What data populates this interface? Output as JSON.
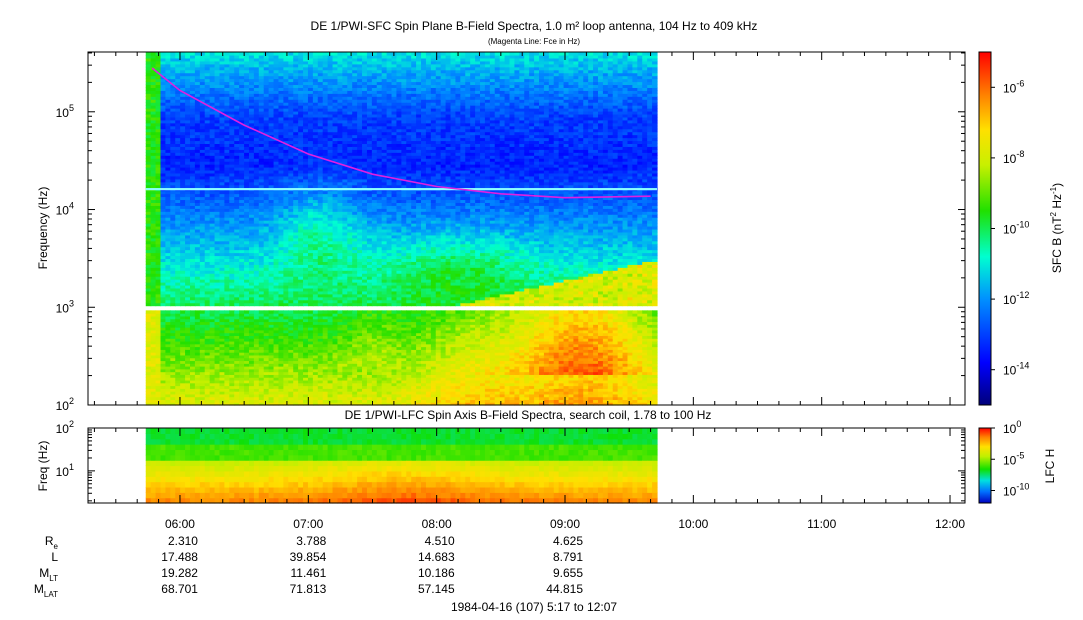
{
  "chart_data": [
    {
      "type": "heatmap",
      "title": "DE 1/PWI-SFC  Spin Plane B-Field Spectra, 1.0 m² loop antenna, 104 Hz to 409 kHz",
      "subtitle": "(Magenta Line: Fce in Hz)",
      "ylabel": "Frequency (Hz)",
      "y_scale": "log",
      "ylim": [
        100,
        409000
      ],
      "ytick_labels": [
        {
          "base": "10",
          "exp": "2"
        },
        {
          "base": "10",
          "exp": "3"
        },
        {
          "base": "10",
          "exp": "4"
        },
        {
          "base": "10",
          "exp": "5"
        }
      ],
      "colorbar": {
        "label": "SFC B (nT² Hz⁻¹)",
        "label_parts": {
          "pre": "SFC B (nT",
          "exp1": "2",
          "mid": " Hz",
          "exp2": "-1",
          "post": ")"
        },
        "scale": "log",
        "range_exp": [
          -15,
          -5
        ],
        "ticks": [
          {
            "base": "10",
            "exp": "-6"
          },
          {
            "base": "10",
            "exp": "-8"
          },
          {
            "base": "10",
            "exp": "-10"
          },
          {
            "base": "10",
            "exp": "-12"
          },
          {
            "base": "10",
            "exp": "-14"
          }
        ]
      },
      "data_coverage_ut": [
        "05:44",
        "09:43"
      ],
      "fce_line": {
        "color": "#e020e0",
        "points": [
          {
            "t": "05:47",
            "f": 280000
          },
          {
            "t": "06:00",
            "f": 165000
          },
          {
            "t": "06:30",
            "f": 73000
          },
          {
            "t": "07:00",
            "f": 37000
          },
          {
            "t": "07:30",
            "f": 23000
          },
          {
            "t": "08:00",
            "f": 17200
          },
          {
            "t": "08:30",
            "f": 14500
          },
          {
            "t": "09:00",
            "f": 13200
          },
          {
            "t": "09:40",
            "f": 13700
          }
        ]
      }
    },
    {
      "type": "heatmap",
      "title": "DE 1/PWI-LFC  Spin Axis B-Field Spectra, search coil, 1.78 to 100 Hz",
      "ylabel": "Freq (Hz)",
      "y_scale": "log",
      "ylim": [
        1.78,
        100
      ],
      "ytick_labels": [
        {
          "base": "10",
          "exp": "2"
        },
        {
          "base": "10",
          "exp": "1"
        }
      ],
      "colorbar": {
        "label": "LFC H",
        "scale": "log",
        "range_exp": [
          -12,
          0
        ],
        "ticks": [
          {
            "base": "10",
            "exp": "0"
          },
          {
            "base": "10",
            "exp": "-5"
          },
          {
            "base": "10",
            "exp": "-10"
          }
        ]
      },
      "data_coverage_ut": [
        "05:44",
        "09:43"
      ]
    }
  ],
  "x_axis": {
    "ticks": [
      "06:00",
      "07:00",
      "08:00",
      "09:00",
      "10:00",
      "11:00",
      "12:00"
    ],
    "range": [
      "05:17",
      "12:07"
    ]
  },
  "ephemeris": {
    "rows": [
      {
        "label": "R",
        "sub": "e",
        "values": [
          "2.310",
          "3.788",
          "4.510",
          "4.625"
        ]
      },
      {
        "label": "L",
        "sub": "",
        "values": [
          "17.488",
          "39.854",
          "14.683",
          "8.791"
        ]
      },
      {
        "label": "M",
        "sub": "LT",
        "values": [
          "19.282",
          "11.461",
          "10.186",
          "9.655"
        ]
      },
      {
        "label": "M",
        "sub": "LAT",
        "values": [
          "68.701",
          "71.813",
          "57.145",
          "44.815"
        ]
      }
    ]
  },
  "footer": "1984-04-16 (107) 5:17 to 12:07"
}
